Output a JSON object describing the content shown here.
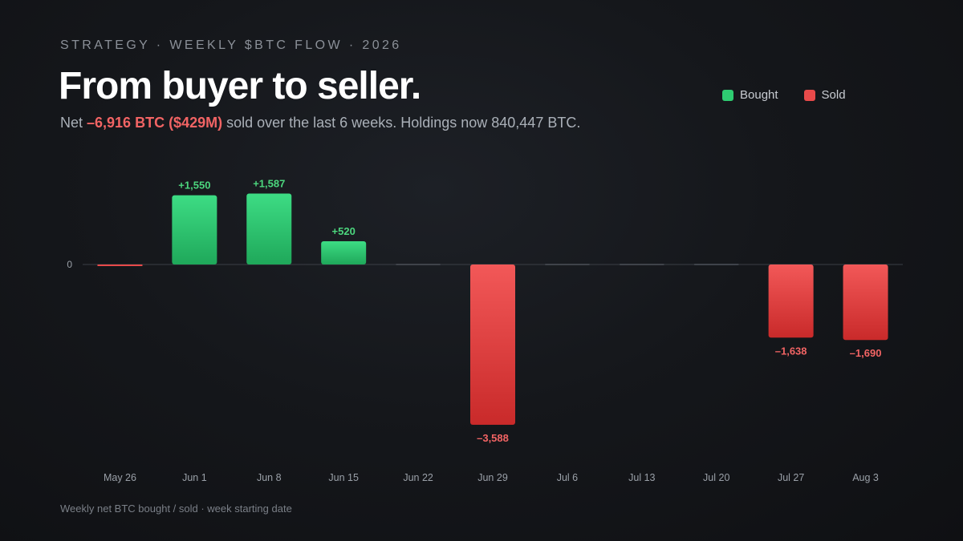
{
  "header": {
    "kicker": "STRATEGY · WEEKLY $BTC FLOW · 2026",
    "title": "From buyer to seller.",
    "subtitle_prefix": "Net ",
    "subtitle_highlight": "–6,916 BTC ($429M)",
    "subtitle_suffix": " sold over the last 6 weeks. Holdings now 840,447 BTC."
  },
  "legend": {
    "bought_label": "Bought",
    "sold_label": "Sold"
  },
  "footnote": "Weekly net BTC bought / sold · week starting date",
  "colors": {
    "bought": "#2ecc71",
    "sold": "#e84a4a",
    "bought_label": "#4cd77e",
    "sold_label": "#f26464",
    "highlight": "#f26464"
  },
  "chart_data": {
    "type": "bar",
    "categories": [
      "May 26",
      "Jun 1",
      "Jun 8",
      "Jun 15",
      "Jun 22",
      "Jun 29",
      "Jul 6",
      "Jul 13",
      "Jul 20",
      "Jul 27",
      "Aug 3"
    ],
    "values": [
      -20,
      1550,
      1587,
      520,
      0,
      -3588,
      0,
      0,
      0,
      -1638,
      -1690
    ],
    "data_labels": [
      "",
      "+1,550",
      "+1,587",
      "+520",
      "",
      "–3,588",
      "",
      "",
      "",
      "–1,638",
      "–1,690"
    ],
    "y_tick_label": "0",
    "ylim": [
      -3900,
      2000
    ],
    "series": [
      {
        "name": "Bought"
      },
      {
        "name": "Sold"
      }
    ],
    "grid": false,
    "legend_position": "top-right"
  }
}
